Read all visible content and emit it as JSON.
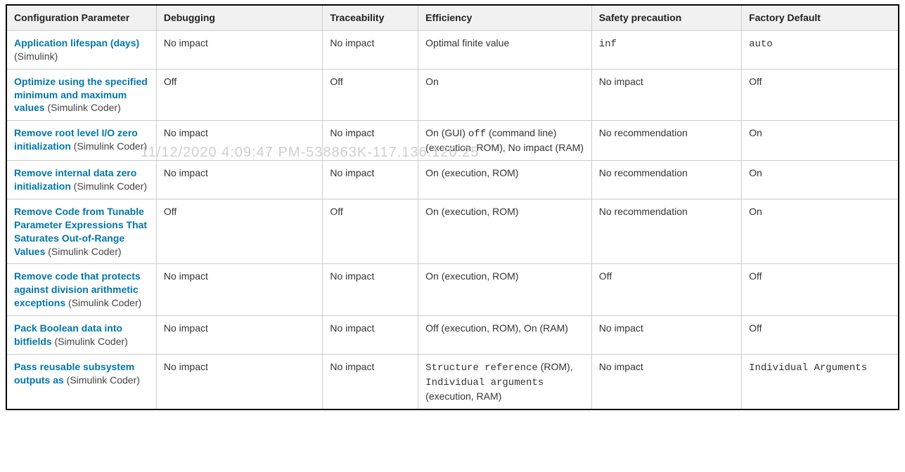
{
  "watermark_text": "11/12/2020 4:09:47 PM-538863K-117.136.120.25",
  "table": {
    "columns": [
      "Configuration Parameter",
      "Debugging",
      "Traceability",
      "Efficiency",
      "Safety precaution",
      "Factory Default"
    ],
    "rows": [
      {
        "param_link": "Application lifespan (days)",
        "param_source": " (Simulink)",
        "debugging": [
          {
            "t": "plain",
            "v": "No impact"
          }
        ],
        "traceability": [
          {
            "t": "plain",
            "v": "No impact"
          }
        ],
        "efficiency": [
          {
            "t": "plain",
            "v": "Optimal finite value"
          }
        ],
        "safety": [
          {
            "t": "mono",
            "v": "inf"
          }
        ],
        "default": [
          {
            "t": "mono",
            "v": "auto"
          }
        ]
      },
      {
        "param_link": "Optimize using the specified minimum and maximum values",
        "param_source": " (Simulink Coder)",
        "debugging": [
          {
            "t": "plain",
            "v": "Off"
          }
        ],
        "traceability": [
          {
            "t": "plain",
            "v": "Off"
          }
        ],
        "efficiency": [
          {
            "t": "plain",
            "v": "On"
          }
        ],
        "safety": [
          {
            "t": "plain",
            "v": "No impact"
          }
        ],
        "default": [
          {
            "t": "plain",
            "v": "Off"
          }
        ]
      },
      {
        "param_link": "Remove root level I/O zero initialization",
        "param_source": " (Simulink Coder)",
        "debugging": [
          {
            "t": "plain",
            "v": "No impact"
          }
        ],
        "traceability": [
          {
            "t": "plain",
            "v": "No impact"
          }
        ],
        "efficiency": [
          {
            "t": "plain",
            "v": "On (GUI) "
          },
          {
            "t": "mono",
            "v": "off"
          },
          {
            "t": "plain",
            "v": " (command line) (execution, ROM), No impact (RAM)"
          }
        ],
        "safety": [
          {
            "t": "plain",
            "v": "No recommendation"
          }
        ],
        "default": [
          {
            "t": "plain",
            "v": "On"
          }
        ]
      },
      {
        "param_link": "Remove internal data zero initialization",
        "param_source": " (Simulink Coder)",
        "debugging": [
          {
            "t": "plain",
            "v": "No impact"
          }
        ],
        "traceability": [
          {
            "t": "plain",
            "v": "No impact"
          }
        ],
        "efficiency": [
          {
            "t": "plain",
            "v": "On (execution, ROM)"
          }
        ],
        "safety": [
          {
            "t": "plain",
            "v": "No recommendation"
          }
        ],
        "default": [
          {
            "t": "plain",
            "v": "On"
          }
        ]
      },
      {
        "param_link": "Remove Code from Tunable Parameter Expressions That Saturates Out-of-Range Values",
        "param_source": " (Simulink Coder)",
        "debugging": [
          {
            "t": "plain",
            "v": "Off"
          }
        ],
        "traceability": [
          {
            "t": "plain",
            "v": "Off"
          }
        ],
        "efficiency": [
          {
            "t": "plain",
            "v": "On (execution, ROM)"
          }
        ],
        "safety": [
          {
            "t": "plain",
            "v": "No recommendation"
          }
        ],
        "default": [
          {
            "t": "plain",
            "v": "On"
          }
        ]
      },
      {
        "param_link": "Remove code that protects against division arithmetic exceptions",
        "param_source": " (Simulink Coder)",
        "debugging": [
          {
            "t": "plain",
            "v": "No impact"
          }
        ],
        "traceability": [
          {
            "t": "plain",
            "v": "No impact"
          }
        ],
        "efficiency": [
          {
            "t": "plain",
            "v": "On (execution, ROM)"
          }
        ],
        "safety": [
          {
            "t": "plain",
            "v": "Off"
          }
        ],
        "default": [
          {
            "t": "plain",
            "v": "Off"
          }
        ]
      },
      {
        "param_link": "Pack Boolean data into bitfields",
        "param_source": " (Simulink Coder)",
        "debugging": [
          {
            "t": "plain",
            "v": "No impact"
          }
        ],
        "traceability": [
          {
            "t": "plain",
            "v": "No impact"
          }
        ],
        "efficiency": [
          {
            "t": "plain",
            "v": "Off (execution, ROM), On (RAM)"
          }
        ],
        "safety": [
          {
            "t": "plain",
            "v": "No impact"
          }
        ],
        "default": [
          {
            "t": "plain",
            "v": "Off"
          }
        ]
      },
      {
        "param_link": "Pass reusable subsystem outputs as",
        "param_source": " (Simulink Coder)",
        "debugging": [
          {
            "t": "plain",
            "v": "No impact"
          }
        ],
        "traceability": [
          {
            "t": "plain",
            "v": "No impact"
          }
        ],
        "efficiency": [
          {
            "t": "mono",
            "v": "Structure reference"
          },
          {
            "t": "plain",
            "v": " (ROM), "
          },
          {
            "t": "mono",
            "v": "Individual arguments"
          },
          {
            "t": "plain",
            "v": " (execution, RAM)"
          }
        ],
        "safety": [
          {
            "t": "plain",
            "v": "No impact"
          }
        ],
        "default": [
          {
            "t": "mono",
            "v": "Individual Arguments"
          }
        ]
      }
    ]
  }
}
